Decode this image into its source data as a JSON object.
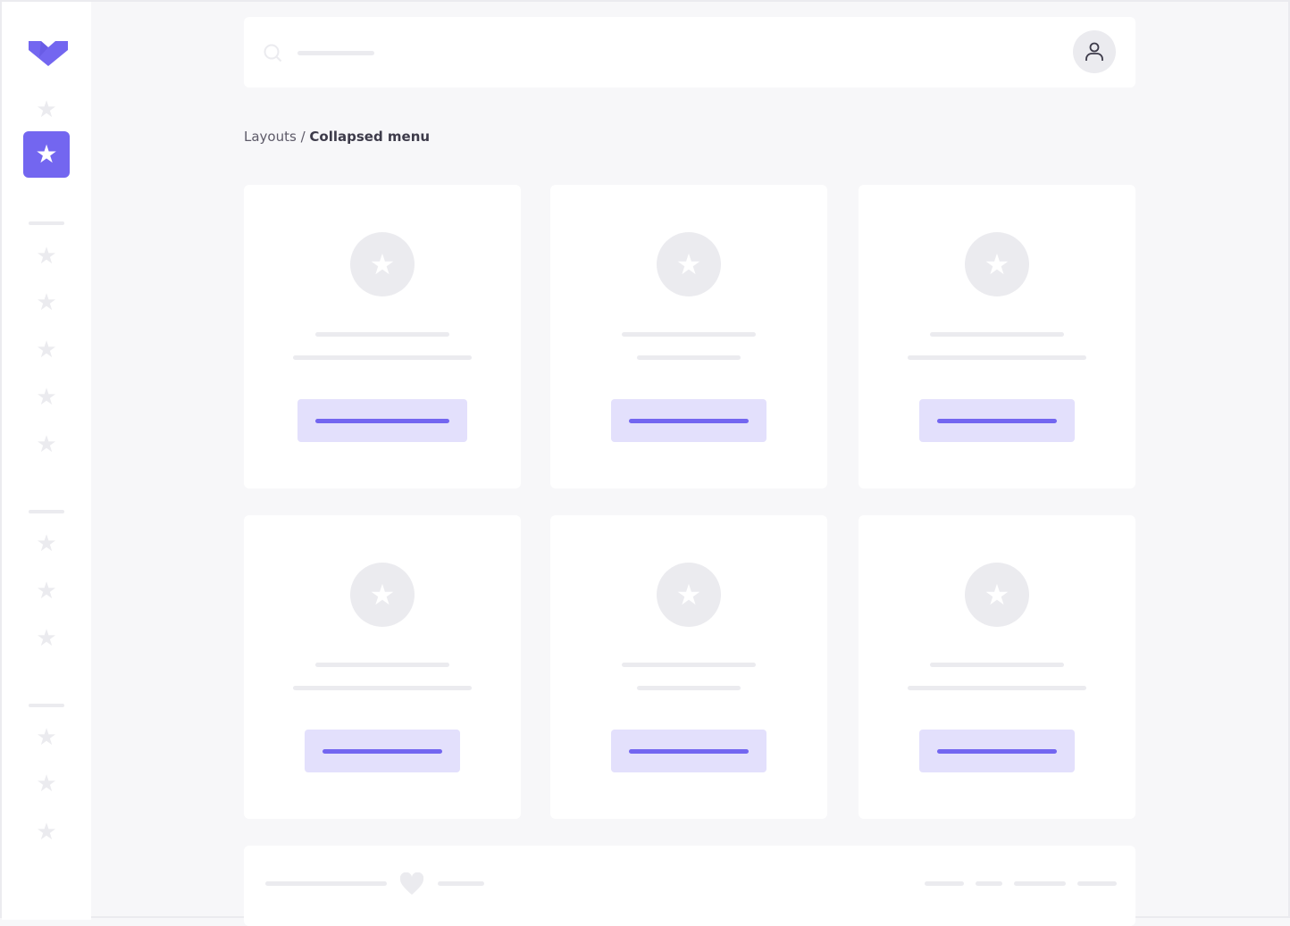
{
  "colors": {
    "accent": "#7366f0",
    "accent_light": "#e3e0fc",
    "placeholder": "#ebebef",
    "background": "#f7f7f9"
  },
  "sidebar": {
    "logo": "heart-chevron-logo",
    "active_item": "star",
    "item_icon": "star-icon"
  },
  "header": {
    "search_icon": "search-icon",
    "user_icon": "user-icon"
  },
  "breadcrumb": {
    "parent": "Layouts",
    "separator": " / ",
    "current": "Collapsed menu"
  },
  "footer": {
    "icon": "heart-icon"
  }
}
